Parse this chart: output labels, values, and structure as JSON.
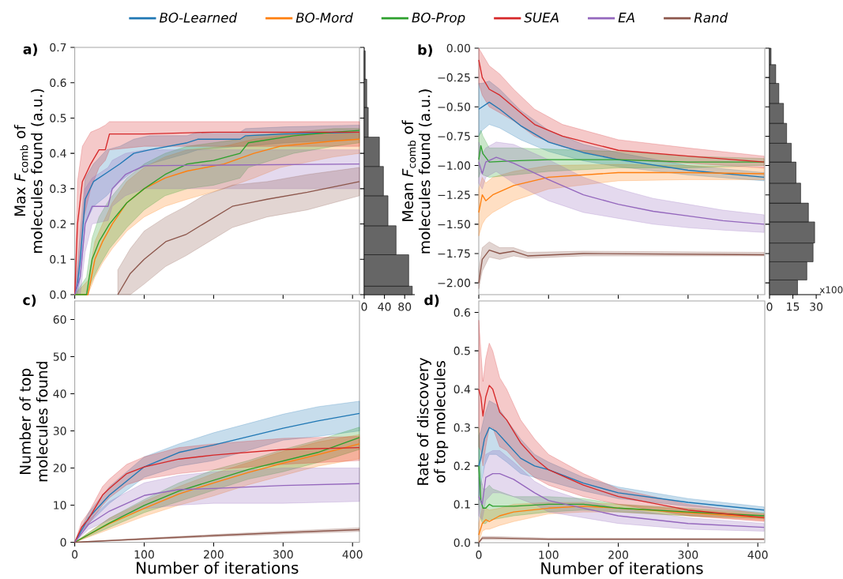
{
  "chart_data": [
    {
      "type": "line",
      "title": "a)",
      "ylabel": "Max *F*$_{comb}$ of molecules found (a.u.)",
      "xlim": [
        0,
        410
      ],
      "ylim": [
        0,
        0.7
      ],
      "xticks": [
        0,
        100,
        200,
        300,
        400
      ],
      "yticks": [
        {
          "value": 0,
          "label": "0.0"
        },
        {
          "value": 0.1,
          "label": "0.1"
        },
        {
          "value": 0.2,
          "label": "0.2"
        },
        {
          "value": 0.3,
          "label": "0.3"
        },
        {
          "value": 0.4,
          "label": "0.4"
        },
        {
          "value": 0.5,
          "label": "0.5"
        },
        {
          "value": 0.6,
          "label": "0.6"
        },
        {
          "value": 0.7,
          "label": "0.7"
        }
      ],
      "tick_labels": "y",
      "legend": "top",
      "series": [
        {
          "name": "BO-Learned",
          "color": "#1f77b4",
          "x": [
            0,
            4,
            8,
            15,
            27,
            46,
            65,
            85,
            108,
            162,
            177,
            238,
            246,
            304,
            410
          ],
          "values": [
            0,
            0.03,
            0.1,
            0.27,
            0.32,
            0.345,
            0.37,
            0.4,
            0.41,
            0.43,
            0.44,
            0.44,
            0.45,
            0.455,
            0.46
          ],
          "lower": [
            0,
            0,
            0.05,
            0.2,
            0.25,
            0.28,
            0.32,
            0.35,
            0.37,
            0.4,
            0.41,
            0.42,
            0.42,
            0.43,
            0.44
          ],
          "upper": [
            0,
            0.08,
            0.18,
            0.33,
            0.37,
            0.41,
            0.42,
            0.44,
            0.45,
            0.45,
            0.46,
            0.46,
            0.47,
            0.475,
            0.48
          ]
        },
        {
          "name": "BO-Mord",
          "color": "#ff7f0e",
          "x": [
            0,
            19,
            29,
            40,
            54,
            75,
            100,
            130,
            162,
            215,
            258,
            296,
            373,
            410
          ],
          "values": [
            0,
            0,
            0.1,
            0.15,
            0.2,
            0.26,
            0.3,
            0.33,
            0.35,
            0.37,
            0.4,
            0.42,
            0.435,
            0.44
          ],
          "lower": [
            0,
            0,
            0.05,
            0.09,
            0.13,
            0.18,
            0.22,
            0.25,
            0.27,
            0.3,
            0.33,
            0.36,
            0.39,
            0.4
          ],
          "upper": [
            0,
            0.04,
            0.15,
            0.2,
            0.26,
            0.32,
            0.36,
            0.39,
            0.41,
            0.42,
            0.44,
            0.45,
            0.46,
            0.46
          ]
        },
        {
          "name": "BO-Prop",
          "color": "#2ca02c",
          "x": [
            0,
            17,
            25,
            35,
            50,
            75,
            100,
            130,
            162,
            200,
            238,
            250,
            315,
            373,
            410
          ],
          "values": [
            0,
            0,
            0.1,
            0.15,
            0.2,
            0.26,
            0.3,
            0.34,
            0.37,
            0.38,
            0.4,
            0.43,
            0.45,
            0.46,
            0.465
          ],
          "lower": [
            0,
            0,
            0.04,
            0.08,
            0.13,
            0.19,
            0.24,
            0.28,
            0.3,
            0.31,
            0.33,
            0.36,
            0.4,
            0.42,
            0.43
          ],
          "upper": [
            0,
            0.05,
            0.16,
            0.22,
            0.27,
            0.33,
            0.37,
            0.4,
            0.42,
            0.43,
            0.44,
            0.45,
            0.46,
            0.47,
            0.47
          ]
        },
        {
          "name": "SUEA",
          "color": "#d62728",
          "x": [
            0,
            4,
            11,
            23,
            35,
            44,
            50,
            100,
            200,
            300,
            410
          ],
          "values": [
            0,
            0.2,
            0.32,
            0.37,
            0.41,
            0.41,
            0.455,
            0.455,
            0.46,
            0.46,
            0.46
          ],
          "lower": [
            0,
            0.05,
            0.2,
            0.3,
            0.36,
            0.38,
            0.41,
            0.42,
            0.42,
            0.42,
            0.42
          ],
          "upper": [
            0,
            0.32,
            0.42,
            0.46,
            0.47,
            0.48,
            0.49,
            0.49,
            0.49,
            0.49,
            0.49
          ]
        },
        {
          "name": "EA",
          "color": "#9467bd",
          "x": [
            0,
            8,
            15,
            25,
            48,
            54,
            73,
            100,
            410
          ],
          "values": [
            0,
            0.05,
            0.2,
            0.25,
            0.25,
            0.3,
            0.34,
            0.365,
            0.37
          ],
          "lower": [
            0,
            0,
            0.12,
            0.2,
            0.21,
            0.25,
            0.28,
            0.3,
            0.3
          ],
          "upper": [
            0,
            0.12,
            0.3,
            0.33,
            0.36,
            0.38,
            0.4,
            0.41,
            0.41
          ]
        },
        {
          "name": "Rand",
          "color": "#8c564b",
          "x": [
            62,
            80,
            100,
            131,
            160,
            185,
            227,
            277,
            335,
            410
          ],
          "values": [
            0,
            0.06,
            0.1,
            0.15,
            0.17,
            0.2,
            0.25,
            0.27,
            0.29,
            0.32
          ],
          "lower": [
            0,
            0,
            0.03,
            0.08,
            0.11,
            0.14,
            0.19,
            0.22,
            0.24,
            0.28
          ],
          "upper": [
            0.07,
            0.13,
            0.18,
            0.22,
            0.25,
            0.28,
            0.31,
            0.32,
            0.34,
            0.36
          ]
        }
      ]
    },
    {
      "type": "histogram",
      "orientation": "horizontal",
      "bins": [
        0,
        0.024,
        0.113,
        0.195,
        0.28,
        0.363,
        0.446,
        0.53,
        0.61,
        0.69
      ],
      "values": [
        95,
        88,
        63,
        47,
        38,
        30,
        8,
        5,
        2
      ],
      "color": "#666666",
      "xlim": [
        0,
        100
      ],
      "ylim": [
        0,
        0.7
      ],
      "xticks": [
        0,
        40,
        80
      ],
      "yticks": [
        0,
        0.1,
        0.2,
        0.3,
        0.4,
        0.5,
        0.6,
        0.7
      ],
      "tick_labels": "x"
    },
    {
      "type": "line",
      "title": "b)",
      "ylabel": "Mean *F*$_{comb}$ of molecules found (a.u.)",
      "xlim": [
        0,
        410
      ],
      "ylim": [
        -2.1,
        0
      ],
      "xticks": [
        0,
        100,
        200,
        300,
        400
      ],
      "yticks": [
        {
          "value": 0,
          "label": "0.00"
        },
        {
          "value": -0.25,
          "label": "−0.25"
        },
        {
          "value": -0.5,
          "label": "−0.50"
        },
        {
          "value": -0.75,
          "label": "−0.75"
        },
        {
          "value": -1,
          "label": "−1.00"
        },
        {
          "value": -1.25,
          "label": "−1.25"
        },
        {
          "value": -1.5,
          "label": "−1.50"
        },
        {
          "value": -1.75,
          "label": "−1.75"
        },
        {
          "value": -2,
          "label": "−2.00"
        }
      ],
      "tick_labels": "y",
      "series": [
        {
          "color": "#1f77b4",
          "x": [
            0,
            5,
            15,
            30,
            60,
            100,
            150,
            200,
            300,
            409
          ],
          "values": [
            -0.52,
            -0.5,
            -0.46,
            -0.52,
            -0.66,
            -0.8,
            -0.89,
            -0.95,
            -1.04,
            -1.1
          ],
          "lower": [
            -0.75,
            -0.7,
            -0.65,
            -0.68,
            -0.78,
            -0.88,
            -0.96,
            -1.01,
            -1.08,
            -1.13
          ],
          "upper": [
            -0.3,
            -0.3,
            -0.28,
            -0.35,
            -0.53,
            -0.7,
            -0.82,
            -0.89,
            -1.0,
            -1.06
          ]
        },
        {
          "color": "#ff7f0e",
          "x": [
            0,
            5,
            10,
            20,
            50,
            100,
            200,
            300,
            409
          ],
          "values": [
            -1.4,
            -1.25,
            -1.3,
            -1.25,
            -1.17,
            -1.1,
            -1.06,
            -1.06,
            -1.07
          ],
          "lower": [
            -1.6,
            -1.5,
            -1.45,
            -1.4,
            -1.3,
            -1.2,
            -1.13,
            -1.12,
            -1.12
          ],
          "upper": [
            -1.2,
            -1.1,
            -1.15,
            -1.1,
            -1.05,
            -1.0,
            -0.99,
            -1.0,
            -1.02
          ]
        },
        {
          "color": "#2ca02c",
          "x": [
            0,
            3,
            6,
            15,
            50,
            100,
            200,
            300,
            409
          ],
          "values": [
            -0.95,
            -0.83,
            -0.9,
            -0.97,
            -0.96,
            -0.95,
            -0.95,
            -0.97,
            -0.97
          ],
          "lower": [
            -1.1,
            -1.05,
            -1.08,
            -1.1,
            -1.08,
            -1.05,
            -1.02,
            -1.02,
            -1.0
          ],
          "upper": [
            -0.75,
            -0.7,
            -0.75,
            -0.85,
            -0.85,
            -0.86,
            -0.88,
            -0.92,
            -0.94
          ]
        },
        {
          "color": "#d62728",
          "x": [
            0,
            5,
            15,
            30,
            50,
            80,
            120,
            200,
            300,
            409
          ],
          "values": [
            -0.1,
            -0.25,
            -0.35,
            -0.4,
            -0.5,
            -0.65,
            -0.75,
            -0.87,
            -0.92,
            -0.97
          ],
          "lower": [
            -0.3,
            -0.4,
            -0.5,
            -0.55,
            -0.62,
            -0.75,
            -0.84,
            -0.95,
            -0.98,
            -1.02
          ],
          "upper": [
            0,
            -0.05,
            -0.15,
            -0.22,
            -0.35,
            -0.52,
            -0.65,
            -0.78,
            -0.85,
            -0.92
          ]
        },
        {
          "color": "#9467bd",
          "x": [
            0,
            5,
            10,
            25,
            50,
            100,
            150,
            200,
            250,
            300,
            350,
            409
          ],
          "values": [
            -0.97,
            -1.07,
            -0.97,
            -0.93,
            -0.98,
            -1.12,
            -1.25,
            -1.33,
            -1.39,
            -1.43,
            -1.47,
            -1.5
          ],
          "lower": [
            -1.15,
            -1.2,
            -1.1,
            -1.05,
            -1.15,
            -1.3,
            -1.4,
            -1.45,
            -1.5,
            -1.53,
            -1.55,
            -1.57
          ],
          "upper": [
            -0.8,
            -0.9,
            -0.85,
            -0.8,
            -0.82,
            -0.95,
            -1.1,
            -1.2,
            -1.28,
            -1.33,
            -1.38,
            -1.42
          ]
        },
        {
          "color": "#8c564b",
          "x": [
            0,
            5,
            15,
            30,
            50,
            70,
            150,
            409
          ],
          "values": [
            -2.0,
            -1.8,
            -1.72,
            -1.75,
            -1.73,
            -1.77,
            -1.75,
            -1.76
          ],
          "lower": [
            -2.05,
            -1.9,
            -1.78,
            -1.8,
            -1.77,
            -1.79,
            -1.77,
            -1.77
          ],
          "upper": [
            -1.9,
            -1.7,
            -1.65,
            -1.7,
            -1.7,
            -1.74,
            -1.73,
            -1.74
          ]
        }
      ]
    },
    {
      "type": "histogram",
      "orientation": "horizontal",
      "bins": [
        -2.1,
        -1.975,
        -1.82,
        -1.66,
        -1.48,
        -1.32,
        -1.15,
        -0.97,
        -0.81,
        -0.64,
        -0.47,
        -0.3,
        -0.14,
        0
      ],
      "values": [
        18,
        24,
        28,
        29,
        25,
        20,
        17,
        14,
        11,
        9,
        6,
        4,
        1
      ],
      "color": "#666666",
      "xlim": [
        0,
        33
      ],
      "ylim": [
        -2.1,
        0
      ],
      "xticks": [
        0,
        15,
        30
      ],
      "yticks": [
        -2,
        -1.75,
        -1.5,
        -1.25,
        -1,
        -0.75,
        -0.5,
        -0.25,
        0
      ],
      "tick_labels": "x",
      "annotations": [
        "x100"
      ]
    },
    {
      "type": "line",
      "title": "c)",
      "ylabel": "Number of top molecules found",
      "xlabel": "Number of iterations",
      "xlim": [
        0,
        410
      ],
      "ylim": [
        0,
        65
      ],
      "xticks": [
        0,
        100,
        200,
        300,
        400
      ],
      "yticks": [
        0,
        10,
        20,
        30,
        40,
        50,
        60
      ],
      "series": [
        {
          "color": "#1f77b4",
          "x": [
            0,
            20,
            50,
            100,
            150,
            200,
            300,
            350,
            410
          ],
          "values": [
            0,
            6.6,
            12.7,
            20.3,
            24.2,
            26.2,
            30.7,
            32.7,
            34.7
          ],
          "lower": [
            0,
            5,
            10.5,
            17.5,
            20.5,
            22,
            27.5,
            28.5,
            30
          ],
          "upper": [
            0,
            8,
            15,
            23,
            26.5,
            29.5,
            34.5,
            36.5,
            38
          ]
        },
        {
          "color": "#ff7f0e",
          "x": [
            0,
            50,
            100,
            150,
            200,
            250,
            300,
            350,
            410
          ],
          "values": [
            0,
            5,
            9.1,
            13,
            16,
            18.8,
            21.3,
            23.6,
            26.5
          ],
          "lower": [
            0,
            3.5,
            7,
            10,
            12.5,
            15.5,
            18,
            20.5,
            22.5
          ],
          "upper": [
            0,
            6.5,
            11,
            15,
            18.5,
            21.5,
            24.5,
            27,
            29
          ]
        },
        {
          "color": "#2ca02c",
          "x": [
            0,
            50,
            100,
            150,
            200,
            250,
            300,
            350,
            410
          ],
          "values": [
            0,
            5.2,
            9.9,
            13.8,
            16.7,
            19.6,
            21.9,
            24.2,
            28.2
          ],
          "lower": [
            0,
            4,
            8,
            11,
            14,
            17,
            19,
            21.5,
            25
          ],
          "upper": [
            0,
            6.5,
            11.5,
            16,
            19.5,
            22,
            25,
            27.5,
            31
          ]
        },
        {
          "color": "#d62728",
          "x": [
            0,
            10,
            20,
            40,
            50,
            75,
            100,
            150,
            200,
            300,
            410
          ],
          "values": [
            0,
            4.1,
            6.3,
            12.7,
            14.5,
            18.5,
            20.3,
            22.4,
            23.5,
            25,
            25.5
          ],
          "lower": [
            0,
            3,
            5,
            10,
            12,
            15.5,
            17,
            18.5,
            19.5,
            21,
            22
          ],
          "upper": [
            0,
            5.5,
            8,
            15,
            17,
            21,
            23,
            25.5,
            26.5,
            28,
            28.5
          ]
        },
        {
          "color": "#9467bd",
          "x": [
            0,
            20,
            50,
            100,
            150,
            200,
            300,
            410
          ],
          "values": [
            0,
            4.8,
            8.4,
            12.6,
            14.2,
            14.5,
            15.3,
            15.8
          ],
          "lower": [
            0,
            3.5,
            6,
            9,
            10,
            10.5,
            10.5,
            11
          ],
          "upper": [
            0,
            6,
            11,
            16,
            18,
            19,
            20,
            20
          ]
        },
        {
          "color": "#8c564b",
          "x": [
            0,
            100,
            200,
            300,
            410
          ],
          "values": [
            0,
            0.9,
            1.8,
            2.6,
            3.4
          ],
          "lower": [
            0,
            0.7,
            1.5,
            2.2,
            2.9
          ],
          "upper": [
            0,
            1.1,
            2.1,
            3,
            3.9
          ]
        }
      ]
    },
    {
      "type": "line",
      "title": "d)",
      "ylabel": "Rate of discovery of top molecules",
      "xlabel": "Number of iterations",
      "xlim": [
        0,
        410
      ],
      "ylim": [
        0,
        0.63
      ],
      "xticks": [
        0,
        100,
        200,
        300,
        400
      ],
      "yticks": [
        {
          "value": 0,
          "label": "0.0"
        },
        {
          "value": 0.1,
          "label": "0.1"
        },
        {
          "value": 0.2,
          "label": "0.2"
        },
        {
          "value": 0.3,
          "label": "0.3"
        },
        {
          "value": 0.4,
          "label": "0.4"
        },
        {
          "value": 0.5,
          "label": "0.5"
        },
        {
          "value": 0.6,
          "label": "0.6"
        }
      ],
      "series": [
        {
          "color": "#1f77b4",
          "x": [
            0,
            3,
            8,
            15,
            25,
            40,
            60,
            80,
            100,
            150,
            200,
            300,
            409
          ],
          "values": [
            0.2,
            0.22,
            0.27,
            0.3,
            0.29,
            0.26,
            0.22,
            0.2,
            0.19,
            0.155,
            0.13,
            0.105,
            0.085
          ],
          "lower": [
            0.12,
            0.15,
            0.2,
            0.23,
            0.23,
            0.21,
            0.18,
            0.17,
            0.16,
            0.135,
            0.115,
            0.095,
            0.078
          ],
          "upper": [
            0.28,
            0.29,
            0.33,
            0.37,
            0.36,
            0.32,
            0.27,
            0.23,
            0.21,
            0.17,
            0.145,
            0.115,
            0.093
          ]
        },
        {
          "color": "#ff7f0e",
          "x": [
            0,
            5,
            10,
            15,
            30,
            50,
            100,
            150,
            200,
            300,
            409
          ],
          "values": [
            0.02,
            0.05,
            0.06,
            0.055,
            0.07,
            0.08,
            0.09,
            0.095,
            0.09,
            0.078,
            0.065
          ],
          "lower": [
            0,
            0.03,
            0.035,
            0.035,
            0.045,
            0.055,
            0.075,
            0.08,
            0.08,
            0.07,
            0.058
          ],
          "upper": [
            0.05,
            0.09,
            0.09,
            0.085,
            0.09,
            0.1,
            0.105,
            0.105,
            0.1,
            0.086,
            0.072
          ]
        },
        {
          "color": "#2ca02c",
          "x": [
            0,
            3,
            6,
            10,
            15,
            20,
            50,
            100,
            150,
            200,
            300,
            409
          ],
          "values": [
            0.2,
            0.11,
            0.09,
            0.09,
            0.1,
            0.095,
            0.095,
            0.1,
            0.1,
            0.09,
            0.08,
            0.07
          ],
          "lower": [
            0.1,
            0.06,
            0.05,
            0.05,
            0.06,
            0.06,
            0.07,
            0.08,
            0.085,
            0.08,
            0.07,
            0.063
          ],
          "upper": [
            0.3,
            0.17,
            0.14,
            0.14,
            0.15,
            0.14,
            0.12,
            0.12,
            0.115,
            0.1,
            0.09,
            0.077
          ]
        },
        {
          "color": "#d62728",
          "x": [
            0,
            3,
            6,
            10,
            15,
            20,
            30,
            40,
            60,
            80,
            100,
            150,
            200,
            300,
            409
          ],
          "values": [
            0.4,
            0.38,
            0.33,
            0.38,
            0.41,
            0.4,
            0.34,
            0.32,
            0.26,
            0.22,
            0.19,
            0.15,
            0.12,
            0.085,
            0.065
          ],
          "lower": [
            0.25,
            0.24,
            0.2,
            0.25,
            0.3,
            0.3,
            0.25,
            0.24,
            0.2,
            0.17,
            0.15,
            0.12,
            0.1,
            0.07,
            0.055
          ],
          "upper": [
            0.58,
            0.5,
            0.42,
            0.48,
            0.52,
            0.5,
            0.43,
            0.4,
            0.32,
            0.27,
            0.23,
            0.18,
            0.14,
            0.1,
            0.075
          ]
        },
        {
          "color": "#9467bd",
          "x": [
            0,
            5,
            10,
            20,
            30,
            50,
            80,
            100,
            150,
            200,
            300,
            409
          ],
          "values": [
            0.12,
            0.1,
            0.17,
            0.18,
            0.18,
            0.165,
            0.13,
            0.11,
            0.09,
            0.07,
            0.05,
            0.04
          ],
          "lower": [
            0.07,
            0.06,
            0.11,
            0.13,
            0.13,
            0.12,
            0.1,
            0.08,
            0.065,
            0.05,
            0.035,
            0.03
          ],
          "upper": [
            0.17,
            0.15,
            0.23,
            0.24,
            0.24,
            0.21,
            0.16,
            0.14,
            0.11,
            0.09,
            0.065,
            0.05
          ]
        },
        {
          "color": "#8c564b",
          "x": [
            0,
            5,
            20,
            100,
            409
          ],
          "values": [
            0,
            0.012,
            0.012,
            0.009,
            0.009
          ],
          "lower": [
            0,
            0.008,
            0.008,
            0.007,
            0.007
          ],
          "upper": [
            0,
            0.016,
            0.016,
            0.012,
            0.011
          ]
        }
      ]
    }
  ]
}
